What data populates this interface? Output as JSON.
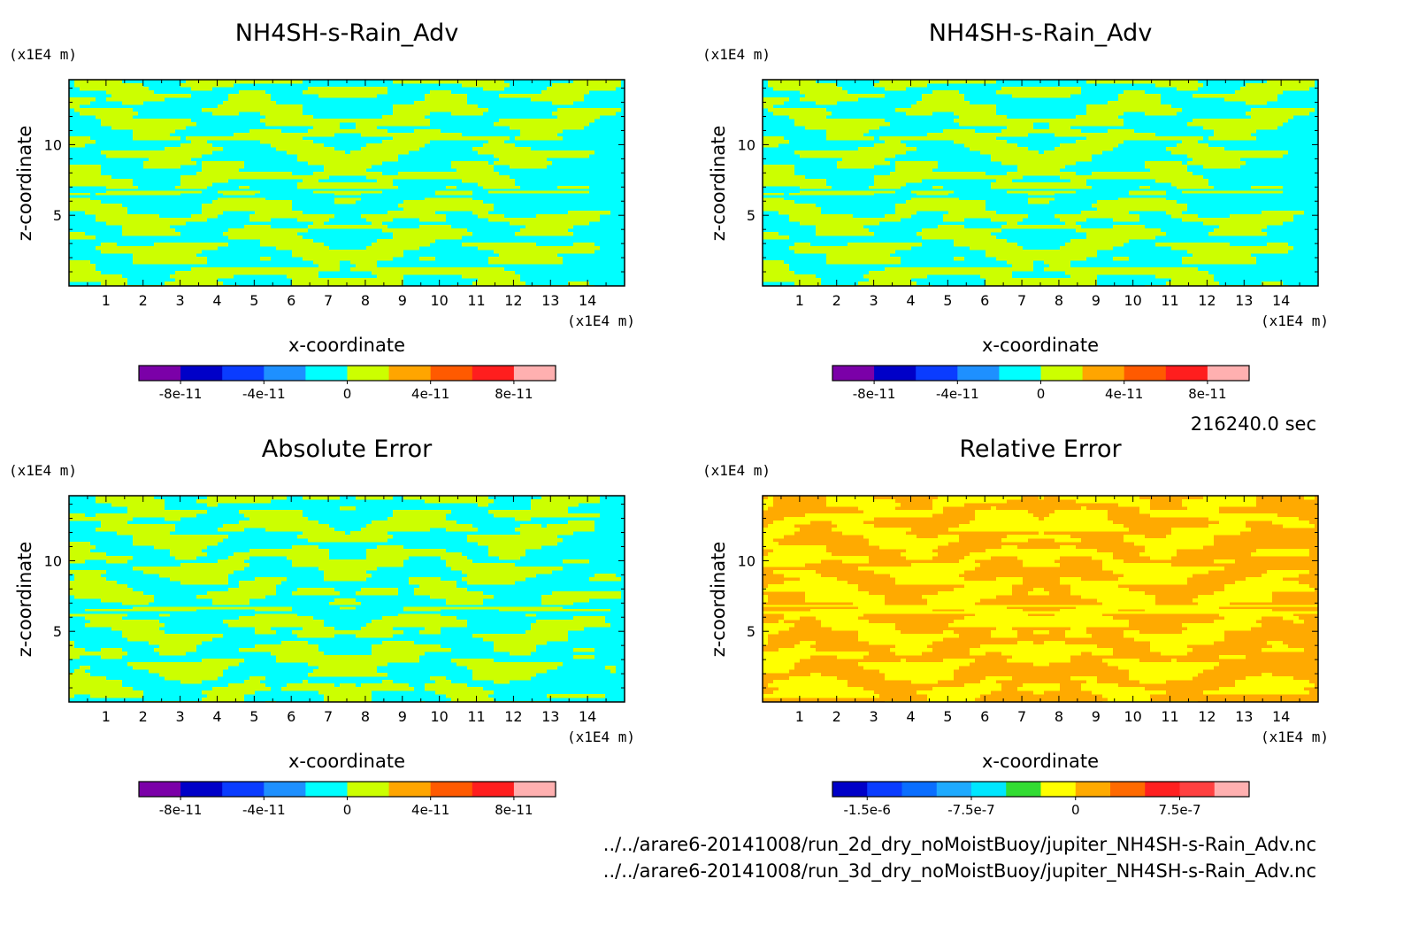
{
  "chart_data": [
    {
      "type": "heatmap",
      "title": "NH4SH-s-Rain_Adv",
      "xlabel": "x-coordinate",
      "ylabel": "z-coordinate",
      "x_unit": "(x1E4 m)",
      "y_unit": "(x1E4 m)",
      "xlim": [
        0,
        15
      ],
      "ylim": [
        0,
        14.6
      ],
      "xticks": [
        "1",
        "2",
        "3",
        "4",
        "5",
        "6",
        "7",
        "8",
        "9",
        "10",
        "11",
        "12",
        "13",
        "14"
      ],
      "yticks": [
        "5",
        "10"
      ],
      "colorbar": {
        "colors": [
          "#7b00a8",
          "#0000c8",
          "#0a3cff",
          "#1e90ff",
          "#00ffff",
          "#ccff00",
          "#ffa500",
          "#ff5a00",
          "#ff1e1e",
          "#ffb0b0"
        ],
        "tick_labels": [
          "-8e-11",
          "-4e-11",
          "0",
          "4e-11",
          "8e-11"
        ]
      },
      "dominant_colors": [
        "#00ffff",
        "#ccff00"
      ]
    },
    {
      "type": "heatmap",
      "title": "NH4SH-s-Rain_Adv",
      "xlabel": "x-coordinate",
      "ylabel": "z-coordinate",
      "x_unit": "(x1E4 m)",
      "y_unit": "(x1E4 m)",
      "xlim": [
        0,
        15
      ],
      "ylim": [
        0,
        14.6
      ],
      "xticks": [
        "1",
        "2",
        "3",
        "4",
        "5",
        "6",
        "7",
        "8",
        "9",
        "10",
        "11",
        "12",
        "13",
        "14"
      ],
      "yticks": [
        "5",
        "10"
      ],
      "colorbar": {
        "colors": [
          "#7b00a8",
          "#0000c8",
          "#0a3cff",
          "#1e90ff",
          "#00ffff",
          "#ccff00",
          "#ffa500",
          "#ff5a00",
          "#ff1e1e",
          "#ffb0b0"
        ],
        "tick_labels": [
          "-8e-11",
          "-4e-11",
          "0",
          "4e-11",
          "8e-11"
        ]
      },
      "dominant_colors": [
        "#00ffff",
        "#ccff00"
      ]
    },
    {
      "type": "heatmap",
      "title": "Absolute Error",
      "xlabel": "x-coordinate",
      "ylabel": "z-coordinate",
      "x_unit": "(x1E4 m)",
      "y_unit": "(x1E4 m)",
      "xlim": [
        0,
        15
      ],
      "ylim": [
        0,
        14.6
      ],
      "xticks": [
        "1",
        "2",
        "3",
        "4",
        "5",
        "6",
        "7",
        "8",
        "9",
        "10",
        "11",
        "12",
        "13",
        "14"
      ],
      "yticks": [
        "5",
        "10"
      ],
      "colorbar": {
        "colors": [
          "#7b00a8",
          "#0000c8",
          "#0a3cff",
          "#1e90ff",
          "#00ffff",
          "#ccff00",
          "#ffa500",
          "#ff5a00",
          "#ff1e1e",
          "#ffb0b0"
        ],
        "tick_labels": [
          "-8e-11",
          "-4e-11",
          "0",
          "4e-11",
          "8e-11"
        ]
      },
      "dominant_colors": [
        "#00ffff",
        "#ccff00"
      ]
    },
    {
      "type": "heatmap",
      "title": "Relative Error",
      "xlabel": "x-coordinate",
      "ylabel": "z-coordinate",
      "x_unit": "(x1E4 m)",
      "y_unit": "(x1E4 m)",
      "xlim": [
        0,
        15
      ],
      "ylim": [
        0,
        14.6
      ],
      "xticks": [
        "1",
        "2",
        "3",
        "4",
        "5",
        "6",
        "7",
        "8",
        "9",
        "10",
        "11",
        "12",
        "13",
        "14"
      ],
      "yticks": [
        "5",
        "10"
      ],
      "colorbar": {
        "colors": [
          "#0000c8",
          "#0a3cff",
          "#0a6eff",
          "#1eaaff",
          "#00e6ff",
          "#32dc32",
          "#ffff00",
          "#ffaa00",
          "#ff6a00",
          "#ff2020",
          "#ff4040",
          "#ffb0b0"
        ],
        "tick_labels": [
          "-1.5e-6",
          "-7.5e-7",
          "0",
          "7.5e-7"
        ]
      },
      "dominant_colors": [
        "#ffaa00",
        "#ffff00"
      ]
    }
  ],
  "time_label": "216240.0 sec",
  "files": [
    "../../arare6-20141008/run_2d_dry_noMoistBuoy/jupiter_NH4SH-s-Rain_Adv.nc",
    "../../arare6-20141008/run_3d_dry_noMoistBuoy/jupiter_NH4SH-s-Rain_Adv.nc"
  ]
}
